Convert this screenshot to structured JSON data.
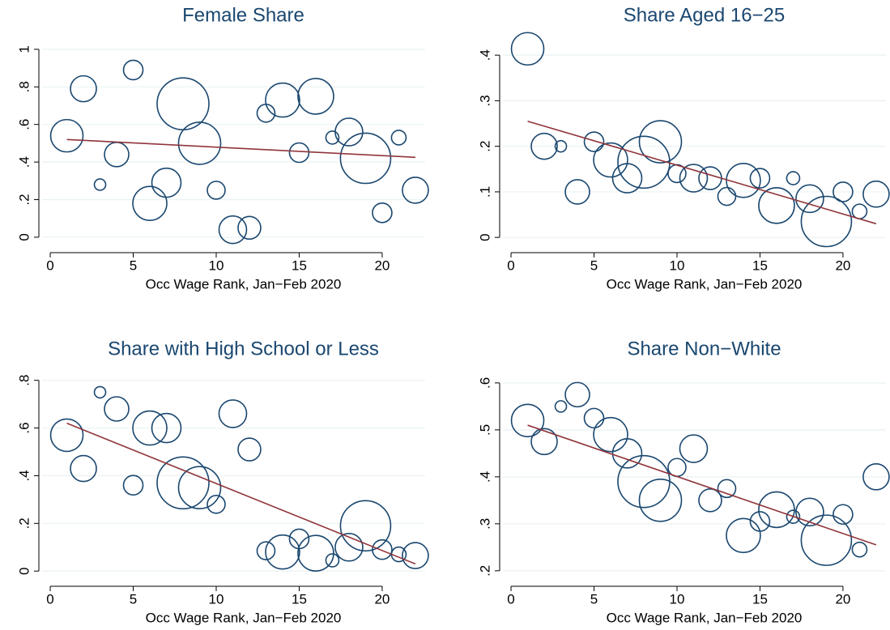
{
  "chart_data": [
    {
      "type": "scatter",
      "title": "Female Share",
      "x_label": "Occ Wage Rank, Jan−Feb 2020",
      "x": [
        1,
        2,
        3,
        4,
        5,
        6,
        7,
        8,
        9,
        10,
        11,
        12,
        13,
        14,
        15,
        16,
        17,
        18,
        19,
        20,
        21,
        22
      ],
      "values": [
        0.54,
        0.79,
        0.28,
        0.44,
        0.89,
        0.18,
        0.29,
        0.71,
        0.5,
        0.25,
        0.04,
        0.05,
        0.66,
        0.73,
        0.45,
        0.75,
        0.53,
        0.56,
        0.42,
        0.13,
        0.53,
        0.25
      ],
      "sizes": [
        20,
        16,
        7,
        15,
        12,
        21,
        18,
        32,
        26,
        11,
        17,
        14,
        11,
        21,
        12,
        22,
        8,
        17,
        31,
        12,
        9,
        16
      ],
      "color": "#1a476f",
      "fit": {
        "x": [
          1,
          22
        ],
        "values": [
          0.52,
          0.425
        ],
        "color": "#90353b"
      },
      "xlim": [
        -0.49,
        22.59
      ],
      "ylim": [
        -0.052,
        1.09
      ],
      "xticks": [
        0,
        5,
        10,
        15,
        20
      ],
      "yticks": [
        0,
        {
          "value": 0.2,
          "label": ".2"
        },
        {
          "value": 0.4,
          "label": ".4"
        },
        {
          "value": 0.6,
          "label": ".6"
        },
        {
          "value": 0.8,
          "label": ".8"
        },
        1
      ],
      "grid": true
    },
    {
      "type": "scatter",
      "title": "Share Aged 16−25",
      "x_label": "Occ Wage Rank, Jan−Feb 2020",
      "x": [
        1,
        2,
        3,
        4,
        5,
        6,
        7,
        8,
        9,
        10,
        11,
        12,
        13,
        14,
        15,
        16,
        17,
        18,
        19,
        20,
        21,
        22
      ],
      "values": [
        0.414,
        0.2,
        0.2,
        0.1,
        0.21,
        0.17,
        0.13,
        0.165,
        0.21,
        0.14,
        0.13,
        0.13,
        0.09,
        0.125,
        0.13,
        0.07,
        0.13,
        0.085,
        0.035,
        0.1,
        0.057,
        0.095
      ],
      "sizes": [
        20,
        16,
        7,
        15,
        12,
        21,
        18,
        32,
        26,
        11,
        17,
        14,
        11,
        21,
        12,
        22,
        8,
        17,
        31,
        12,
        9,
        16
      ],
      "color": "#1a476f",
      "fit": {
        "x": [
          1,
          22
        ],
        "values": [
          0.255,
          0.03
        ],
        "color": "#90353b"
      },
      "xlim": [
        -0.49,
        22.59
      ],
      "ylim": [
        -0.021,
        0.45
      ],
      "xticks": [
        0,
        5,
        10,
        15,
        20
      ],
      "yticks": [
        0,
        {
          "value": 0.1,
          "label": ".1"
        },
        {
          "value": 0.2,
          "label": ".2"
        },
        {
          "value": 0.3,
          "label": ".3"
        },
        {
          "value": 0.4,
          "label": ".4"
        }
      ],
      "grid": true
    },
    {
      "type": "scatter",
      "title": "Share with High School or Less",
      "x_label": "Occ Wage Rank, Jan−Feb 2020",
      "x": [
        1,
        2,
        3,
        4,
        5,
        6,
        7,
        8,
        9,
        10,
        11,
        12,
        13,
        14,
        15,
        16,
        17,
        18,
        19,
        20,
        21,
        22
      ],
      "values": [
        0.57,
        0.43,
        0.75,
        0.68,
        0.36,
        0.6,
        0.6,
        0.37,
        0.35,
        0.28,
        0.66,
        0.51,
        0.085,
        0.08,
        0.135,
        0.075,
        0.045,
        0.1,
        0.19,
        0.09,
        0.07,
        0.065
      ],
      "sizes": [
        20,
        16,
        7,
        15,
        12,
        21,
        18,
        32,
        26,
        11,
        17,
        14,
        11,
        21,
        12,
        22,
        8,
        17,
        31,
        12,
        9,
        16
      ],
      "color": "#1a476f",
      "fit": {
        "x": [
          1,
          22
        ],
        "values": [
          0.62,
          0.03
        ],
        "color": "#90353b"
      },
      "xlim": [
        -0.49,
        22.59
      ],
      "ylim": [
        -0.04,
        0.86
      ],
      "xticks": [
        0,
        5,
        10,
        15,
        20
      ],
      "yticks": [
        0,
        {
          "value": 0.2,
          "label": ".2"
        },
        {
          "value": 0.4,
          "label": ".4"
        },
        {
          "value": 0.6,
          "label": ".6"
        },
        {
          "value": 0.8,
          "label": ".8"
        }
      ],
      "grid": true
    },
    {
      "type": "scatter",
      "title": "Share Non−White",
      "x_label": "Occ Wage Rank, Jan−Feb 2020",
      "x": [
        1,
        2,
        3,
        4,
        5,
        6,
        7,
        8,
        9,
        10,
        11,
        12,
        13,
        14,
        15,
        16,
        17,
        18,
        19,
        20,
        21,
        22
      ],
      "values": [
        0.52,
        0.475,
        0.55,
        0.575,
        0.525,
        0.49,
        0.45,
        0.39,
        0.35,
        0.42,
        0.46,
        0.35,
        0.375,
        0.275,
        0.305,
        0.33,
        0.315,
        0.325,
        0.265,
        0.32,
        0.245,
        0.4
      ],
      "sizes": [
        20,
        16,
        7,
        15,
        12,
        21,
        18,
        32,
        26,
        11,
        17,
        14,
        11,
        21,
        12,
        22,
        8,
        17,
        31,
        12,
        9,
        16
      ],
      "color": "#1a476f",
      "fit": {
        "x": [
          1,
          22
        ],
        "values": [
          0.51,
          0.255
        ],
        "color": "#90353b"
      },
      "xlim": [
        -0.49,
        22.59
      ],
      "ylim": [
        0.179,
        0.636
      ],
      "xticks": [
        0,
        5,
        10,
        15,
        20
      ],
      "yticks": [
        {
          "value": 0.2,
          "label": ".2"
        },
        {
          "value": 0.3,
          "label": ".3"
        },
        {
          "value": 0.4,
          "label": ".4"
        },
        {
          "value": 0.5,
          "label": ".5"
        },
        {
          "value": 0.6,
          "label": ".6"
        }
      ],
      "grid": true
    }
  ]
}
